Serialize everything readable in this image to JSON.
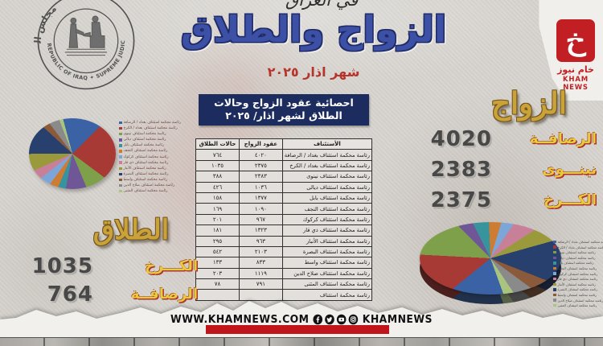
{
  "header": {
    "script_title": "في العراق",
    "title": "الزواج والطلاق",
    "subtitle": "شهر اذار ٢٠٢٥"
  },
  "logos": {
    "council": {
      "ring_top": "مجلس القضاء الأعلى",
      "ring_bottom": "REPUBLIC OF IRAQ ✦ SUPREME JUDICIAL COUNCIL"
    },
    "kham": {
      "glyph": "خ",
      "arabic": "خام نيوز",
      "english": "KHAM NEWS"
    }
  },
  "table": {
    "title_line1": "احصائية عقود الزواج وحالات",
    "title_line2": "الطلاق لشهر اذار/ ٢٠٢٥",
    "headers": {
      "court": "الأستئناف",
      "marriage": "عقود الزواج",
      "divorce": "حالات الطلاق"
    },
    "rows": [
      {
        "court": "رئاسة محكمة استئناف بغداد / الرصافة",
        "marriage": "٤٠٢٠",
        "divorce": "٧٦٤"
      },
      {
        "court": "رئاسة محكمة استئناف بغداد / الكرخ",
        "marriage": "٢٣٧٥",
        "divorce": "١٠٣٥"
      },
      {
        "court": "رئاسة محكمة استئناف نينوى",
        "marriage": "٢٣٨٣",
        "divorce": "٣٨٨"
      },
      {
        "court": "رئاسة محكمة استئناف ديالى",
        "marriage": "١٠٣٦",
        "divorce": "٤٢٦"
      },
      {
        "court": "رئاسة محكمة استئناف بابل",
        "marriage": "١٣٧٧",
        "divorce": "١٥٨"
      },
      {
        "court": "رئاسة محكمة استئناف النجف",
        "marriage": "١٠٩٠",
        "divorce": "١٦٩"
      },
      {
        "court": "رئاسة محكمة استئناف كركوك",
        "marriage": "٩٦٧",
        "divorce": "٢٠١"
      },
      {
        "court": "رئاسة محكمة استئناف ذي قار",
        "marriage": "١٣٢٣",
        "divorce": "١٨١"
      },
      {
        "court": "رئاسة محكمة استئناف الأنبار",
        "marriage": "٩٦٣",
        "divorce": "٢٩٥"
      },
      {
        "court": "رئاسة محكمة استئناف البصرة",
        "marriage": "٢١٠٣",
        "divorce": "٥٤٢"
      },
      {
        "court": "رئاسة محكمة استئناف واسط",
        "marriage": "٨٣٣",
        "divorce": "١٣٣"
      },
      {
        "court": "رئاسة محكمة استئناف صلاح الدين",
        "marriage": "١١١٩",
        "divorce": "٢٠٣"
      },
      {
        "court": "رئاسة محكمة استئناف المثنى",
        "marriage": "٧٩١",
        "divorce": "٧٨"
      },
      {
        "court": "رئاسة محكمة استئناف",
        "marriage": "",
        "divorce": ""
      }
    ]
  },
  "marriage_panel": {
    "title": "الزواج",
    "items": [
      {
        "label": "الرصافــة",
        "value": "4020"
      },
      {
        "label": "نينـــوى",
        "value": "2383"
      },
      {
        "label": "الكـــرخ",
        "value": "2375"
      }
    ]
  },
  "divorce_panel": {
    "title": "الطلاق",
    "items": [
      {
        "label": "الكـــرخ",
        "value": "1035"
      },
      {
        "label": "الرصافــة",
        "value": "764"
      }
    ]
  },
  "footer": {
    "url": "WWW.KHAMNEWS.COM",
    "handle": "KHAMNEWS",
    "icons": [
      "facebook-icon",
      "twitter-icon",
      "youtube-icon",
      "instagram-icon"
    ]
  },
  "pie_colors": [
    "#3a62a4",
    "#a83a35",
    "#7fa04a",
    "#6f5696",
    "#38949c",
    "#cf7c33",
    "#7da6d8",
    "#c87f98",
    "#9a9a3d",
    "#27406e",
    "#8a5a3a",
    "#8a8a8a",
    "#a8c47f"
  ],
  "chart_data": [
    {
      "type": "pie",
      "note": "divorce cases by appeal court, March 2025",
      "categories": [
        "بغداد / الرصافة",
        "بغداد / الكرخ",
        "نينوى",
        "ديالى",
        "بابل",
        "النجف",
        "كركوك",
        "ذي قار",
        "الأنبار",
        "البصرة",
        "واسط",
        "صلاح الدين",
        "المثنى"
      ],
      "values": [
        764,
        1035,
        388,
        426,
        158,
        169,
        201,
        181,
        295,
        542,
        133,
        203,
        78
      ],
      "legend_position": "right"
    },
    {
      "type": "pie",
      "note": "marriage contracts by appeal court, March 2025",
      "categories": [
        "بغداد / الرصافة",
        "بغداد / الكرخ",
        "نينوى",
        "ديالى",
        "بابل",
        "النجف",
        "كركوك",
        "ذي قار",
        "الأنبار",
        "البصرة",
        "واسط",
        "صلاح الدين",
        "المثنى"
      ],
      "values": [
        4020,
        2375,
        2383,
        1036,
        1377,
        1090,
        967,
        1323,
        963,
        2103,
        833,
        1119,
        791
      ],
      "legend_position": "right",
      "style": "3d"
    }
  ]
}
